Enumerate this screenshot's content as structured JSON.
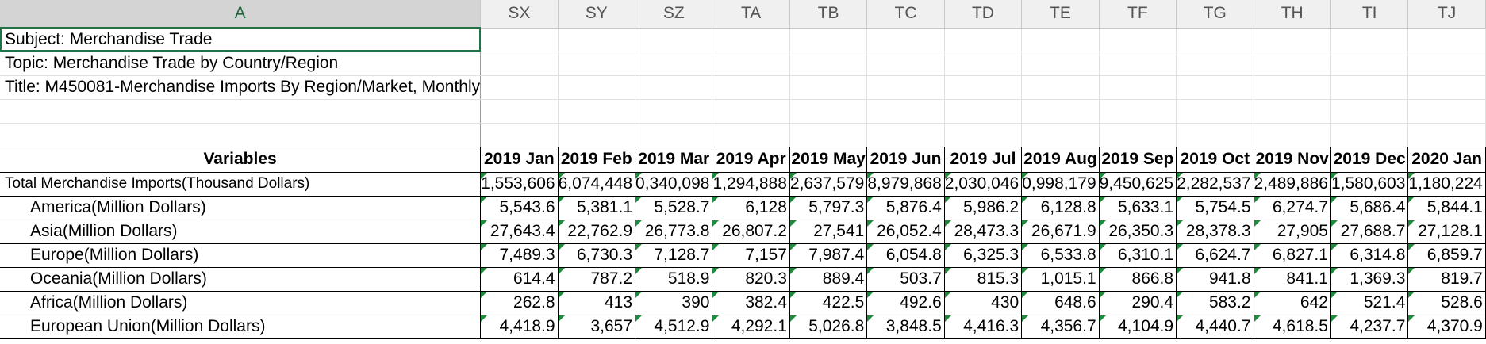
{
  "sheet": {
    "column_headers": [
      "A",
      "SX",
      "SY",
      "SZ",
      "TA",
      "TB",
      "TC",
      "TD",
      "TE",
      "TF",
      "TG",
      "TH",
      "TI",
      "TJ"
    ],
    "info": {
      "subject": "Subject: Merchandise Trade",
      "topic": "Topic: Merchandise Trade by Country/Region",
      "title": "Title: M450081-Merchandise Imports By Region/Market, Monthly"
    },
    "variables_label": "Variables",
    "months": [
      "2019 Jan",
      "2019 Feb",
      "2019 Mar",
      "2019 Apr",
      "2019 May",
      "2019 Jun",
      "2019 Jul",
      "2019 Aug",
      "2019 Sep",
      "2019 Oct",
      "2019 Nov",
      "2019 Dec",
      "2020 Jan"
    ],
    "rows": [
      {
        "label": "Total Merchandise Imports(Thousand Dollars)",
        "values": [
          "1,553,606",
          "6,074,448",
          "0,340,098",
          "1,294,888",
          "2,637,579",
          "8,979,868",
          "2,030,046",
          "0,998,179",
          "9,450,625",
          "2,282,537",
          "2,489,886",
          "1,580,603",
          "1,180,224"
        ]
      },
      {
        "label": "America(Million Dollars)",
        "values": [
          "5,543.6",
          "5,381.1",
          "5,528.7",
          "6,128",
          "5,797.3",
          "5,876.4",
          "5,986.2",
          "6,128.8",
          "5,633.1",
          "5,754.5",
          "6,274.7",
          "5,686.4",
          "5,844.1"
        ]
      },
      {
        "label": "Asia(Million Dollars)",
        "values": [
          "27,643.4",
          "22,762.9",
          "26,773.8",
          "26,807.2",
          "27,541",
          "26,052.4",
          "28,473.3",
          "26,671.9",
          "26,350.3",
          "28,378.3",
          "27,905",
          "27,688.7",
          "27,128.1"
        ]
      },
      {
        "label": "Europe(Million Dollars)",
        "values": [
          "7,489.3",
          "6,730.3",
          "7,128.7",
          "7,157",
          "7,987.4",
          "6,054.8",
          "6,325.3",
          "6,533.8",
          "6,310.1",
          "6,624.7",
          "6,827.1",
          "6,314.8",
          "6,859.7"
        ]
      },
      {
        "label": "Oceania(Million Dollars)",
        "values": [
          "614.4",
          "787.2",
          "518.9",
          "820.3",
          "889.4",
          "503.7",
          "815.3",
          "1,015.1",
          "866.8",
          "941.8",
          "841.1",
          "1,369.3",
          "819.7"
        ]
      },
      {
        "label": "Africa(Million Dollars)",
        "values": [
          "262.8",
          "413",
          "390",
          "382.4",
          "422.5",
          "492.6",
          "430",
          "648.6",
          "290.4",
          "583.2",
          "642",
          "521.4",
          "528.6"
        ]
      },
      {
        "label": "European Union(Million Dollars)",
        "values": [
          "4,418.9",
          "3,657",
          "4,512.9",
          "4,292.1",
          "5,026.8",
          "3,848.5",
          "4,416.3",
          "4,356.7",
          "4,104.9",
          "4,440.7",
          "4,618.5",
          "4,237.7",
          "4,370.9"
        ]
      }
    ]
  }
}
